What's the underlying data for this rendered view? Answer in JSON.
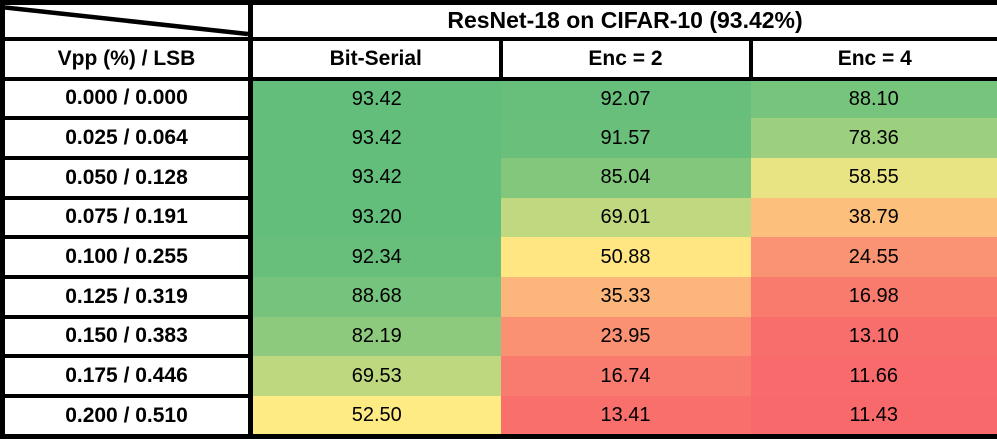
{
  "chart_data": {
    "type": "heatmap",
    "title": "ResNet-18 on CIFAR-10 (93.42%)",
    "row_header": "Vpp (%) / LSB",
    "columns": [
      "Bit-Serial",
      "Enc = 2",
      "Enc = 4"
    ],
    "rows": [
      "0.000 / 0.000",
      "0.025 / 0.064",
      "0.050 / 0.128",
      "0.075 / 0.191",
      "0.100 / 0.255",
      "0.125 / 0.319",
      "0.150 / 0.383",
      "0.175 / 0.446",
      "0.200 / 0.510"
    ],
    "values": [
      [
        93.42,
        92.07,
        88.1
      ],
      [
        93.42,
        91.57,
        78.36
      ],
      [
        93.42,
        85.04,
        58.55
      ],
      [
        93.2,
        69.01,
        38.79
      ],
      [
        92.34,
        50.88,
        24.55
      ],
      [
        88.68,
        35.33,
        16.98
      ],
      [
        82.19,
        23.95,
        13.1
      ],
      [
        69.53,
        16.74,
        11.66
      ],
      [
        52.5,
        13.41,
        11.43
      ]
    ],
    "cell_colors": [
      [
        "#63BE7B",
        "#68BF7B",
        "#77C47C"
      ],
      [
        "#63BE7B",
        "#6AC07B",
        "#9CCF7E"
      ],
      [
        "#63BE7B",
        "#83C77D",
        "#E8E483"
      ],
      [
        "#64BE7B",
        "#C0D980",
        "#FDC07C"
      ],
      [
        "#67BF7B",
        "#FFE683",
        "#FA9373"
      ],
      [
        "#75C37C",
        "#FCB57A",
        "#F97B6E"
      ],
      [
        "#8ECA7D",
        "#FA9173",
        "#F86E6C"
      ],
      [
        "#BED880",
        "#F97A6E",
        "#F86A6B"
      ],
      [
        "#FFEB84",
        "#F86F6C",
        "#F8696B"
      ]
    ],
    "color_scale": {
      "min_value": 11.43,
      "mid_value": 52.43,
      "max_value": 93.42,
      "min_color": "#F8696B",
      "mid_color": "#FFEB84",
      "max_color": "#63BE7B"
    },
    "text_color": "#000000",
    "border_color": "#000000",
    "legend_position": "none",
    "grid": "label-and-header-cells-only"
  }
}
